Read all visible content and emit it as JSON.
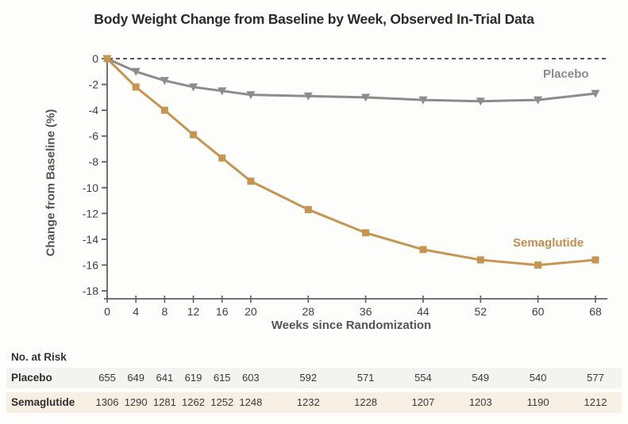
{
  "title": "Body Weight Change from Baseline by Week, Observed In-Trial Data",
  "chart_data": {
    "type": "line",
    "title": "Body Weight Change from Baseline by Week, Observed In-Trial Data",
    "xlabel": "Weeks since Randomization",
    "ylabel": "Change from Baseline (%)",
    "x": [
      0,
      4,
      8,
      12,
      16,
      20,
      28,
      36,
      44,
      52,
      60,
      68
    ],
    "x_ticks": [
      0,
      4,
      8,
      12,
      16,
      20,
      28,
      36,
      44,
      52,
      60,
      68
    ],
    "y_ticks": [
      0,
      -2,
      -4,
      -6,
      -8,
      -10,
      -12,
      -14,
      -16,
      -18
    ],
    "xlim": [
      0,
      68
    ],
    "ylim": [
      -18,
      0
    ],
    "grid": false,
    "legend_position": "inline-end-labels",
    "baseline_dashed_at": 0,
    "series": [
      {
        "name": "Placebo",
        "color": "#8c8c8c",
        "marker": "triangle-down",
        "values": [
          0,
          -1.0,
          -1.7,
          -2.2,
          -2.5,
          -2.8,
          -2.9,
          -3.0,
          -3.2,
          -3.3,
          -3.2,
          -2.7
        ]
      },
      {
        "name": "Semaglutide",
        "color": "#c79552",
        "marker": "square",
        "values": [
          0,
          -2.2,
          -4.0,
          -5.9,
          -7.7,
          -9.5,
          -11.7,
          -13.5,
          -14.8,
          -15.6,
          -16.0,
          -15.6
        ]
      }
    ]
  },
  "annotations": {
    "placebo_label": "Placebo",
    "semaglutide_label": "Semaglutide"
  },
  "risk_table": {
    "heading": "No. at Risk",
    "weeks": [
      0,
      4,
      8,
      12,
      16,
      20,
      28,
      36,
      44,
      52,
      60,
      68
    ],
    "rows": [
      {
        "label": "Placebo",
        "bg": "#f3f3ef",
        "values": [
          "655",
          "649",
          "641",
          "619",
          "615",
          "603",
          "592",
          "571",
          "554",
          "549",
          "540",
          "577"
        ]
      },
      {
        "label": "Semaglutide",
        "bg": "#f8efe4",
        "values": [
          "1306",
          "1290",
          "1281",
          "1262",
          "1252",
          "1248",
          "1232",
          "1228",
          "1207",
          "1203",
          "1190",
          "1212"
        ]
      }
    ]
  },
  "colors": {
    "placebo": "#8c8c8c",
    "semaglutide": "#c79552",
    "axis": "#606060",
    "tick_text": "#3f3f3f",
    "zero_dash": "#3c3c3c",
    "background": "#fdfdfb"
  }
}
